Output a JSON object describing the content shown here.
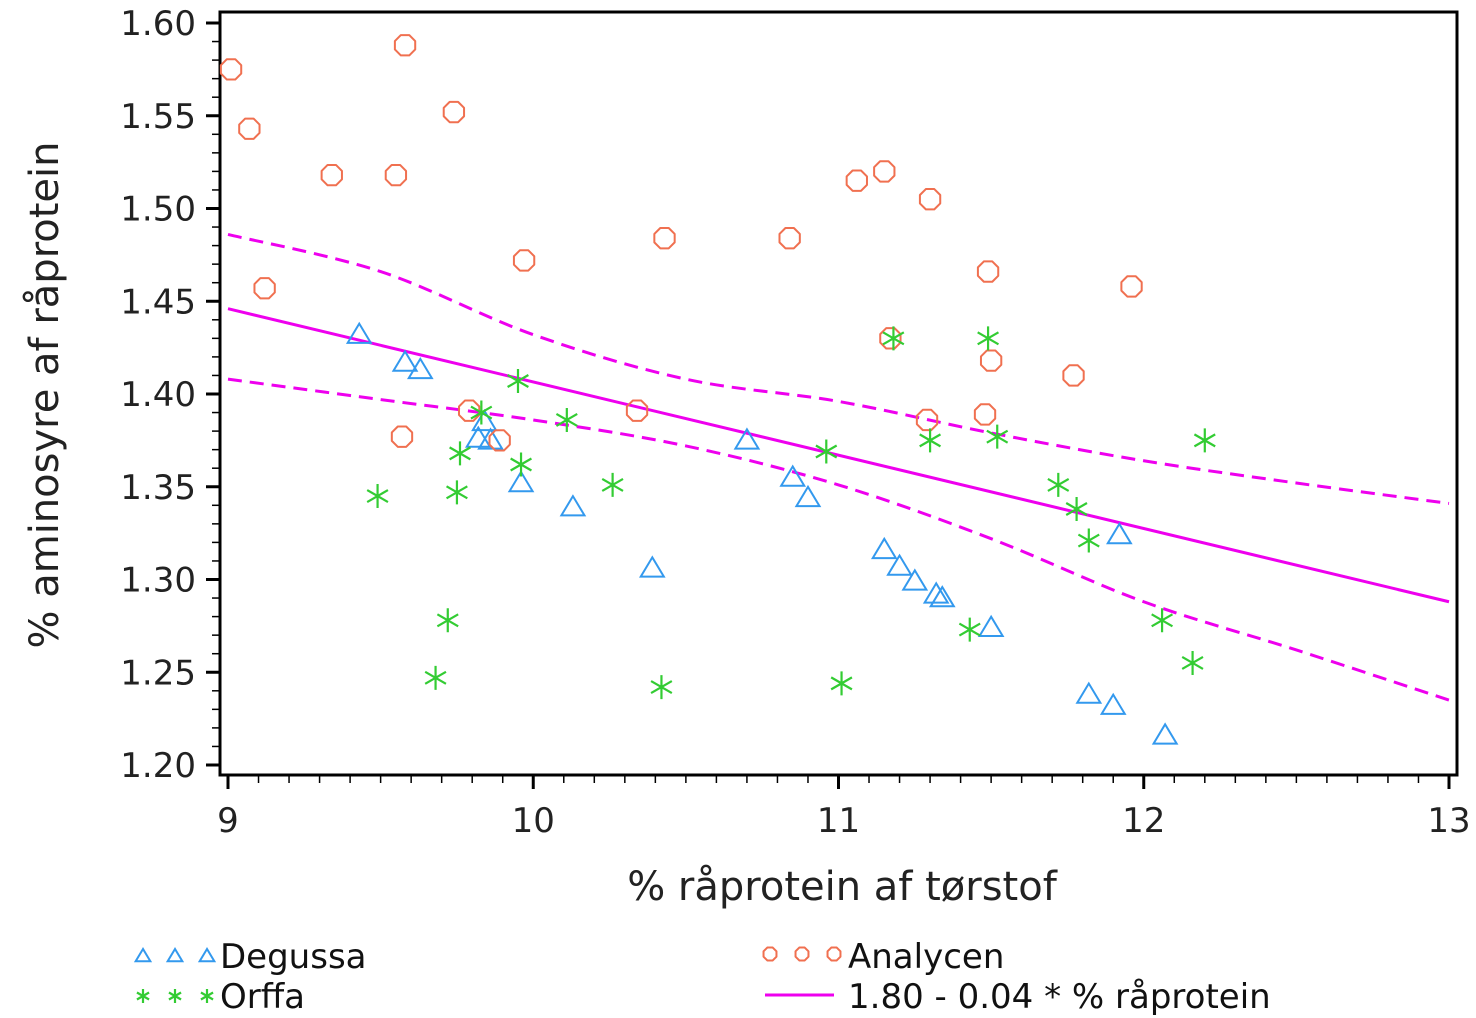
{
  "chart_data": {
    "type": "scatter",
    "title": "",
    "xlabel": "% råprotein af tørstof",
    "ylabel": "% aminosyre af råprotein",
    "xlim": [
      9,
      13
    ],
    "ylim": [
      1.2,
      1.6
    ],
    "x_ticks": [
      "9",
      "10",
      "11",
      "12",
      "13"
    ],
    "y_ticks": [
      "1.20",
      "1.25",
      "1.30",
      "1.35",
      "1.40",
      "1.45",
      "1.50",
      "1.55",
      "1.60"
    ],
    "grid": false,
    "legend_position": "bottom",
    "series": [
      {
        "name": "Degussa",
        "marker": "triangle",
        "color": "#3399ee",
        "points": [
          [
            9.43,
            1.432
          ],
          [
            9.58,
            1.417
          ],
          [
            9.63,
            1.413
          ],
          [
            9.82,
            1.376
          ],
          [
            9.84,
            1.385
          ],
          [
            9.86,
            1.375
          ],
          [
            9.96,
            1.352
          ],
          [
            10.13,
            1.339
          ],
          [
            10.39,
            1.306
          ],
          [
            10.7,
            1.375
          ],
          [
            10.85,
            1.355
          ],
          [
            10.9,
            1.344
          ],
          [
            11.15,
            1.316
          ],
          [
            11.2,
            1.307
          ],
          [
            11.25,
            1.299
          ],
          [
            11.32,
            1.292
          ],
          [
            11.34,
            1.29
          ],
          [
            11.5,
            1.274
          ],
          [
            11.82,
            1.238
          ],
          [
            11.9,
            1.232
          ],
          [
            11.92,
            1.324
          ],
          [
            12.07,
            1.216
          ]
        ]
      },
      {
        "name": "Analycen",
        "marker": "circle",
        "color": "#f07050",
        "points": [
          [
            9.01,
            1.575
          ],
          [
            9.07,
            1.543
          ],
          [
            9.12,
            1.457
          ],
          [
            9.34,
            1.518
          ],
          [
            9.55,
            1.518
          ],
          [
            9.58,
            1.588
          ],
          [
            9.57,
            1.377
          ],
          [
            9.74,
            1.552
          ],
          [
            9.79,
            1.391
          ],
          [
            9.89,
            1.375
          ],
          [
            9.97,
            1.472
          ],
          [
            10.34,
            1.391
          ],
          [
            10.43,
            1.484
          ],
          [
            10.84,
            1.484
          ],
          [
            11.06,
            1.515
          ],
          [
            11.15,
            1.52
          ],
          [
            11.17,
            1.43
          ],
          [
            11.3,
            1.505
          ],
          [
            11.29,
            1.386
          ],
          [
            11.48,
            1.389
          ],
          [
            11.49,
            1.466
          ],
          [
            11.5,
            1.418
          ],
          [
            11.77,
            1.41
          ],
          [
            11.96,
            1.458
          ]
        ]
      },
      {
        "name": "Orffa",
        "marker": "star",
        "color": "#33cc33",
        "points": [
          [
            9.49,
            1.345
          ],
          [
            9.68,
            1.247
          ],
          [
            9.72,
            1.278
          ],
          [
            9.75,
            1.347
          ],
          [
            9.76,
            1.368
          ],
          [
            9.83,
            1.39
          ],
          [
            9.95,
            1.407
          ],
          [
            9.96,
            1.362
          ],
          [
            10.11,
            1.386
          ],
          [
            10.26,
            1.351
          ],
          [
            10.42,
            1.242
          ],
          [
            10.96,
            1.369
          ],
          [
            11.01,
            1.244
          ],
          [
            11.18,
            1.43
          ],
          [
            11.3,
            1.375
          ],
          [
            11.43,
            1.273
          ],
          [
            11.49,
            1.43
          ],
          [
            11.52,
            1.377
          ],
          [
            11.72,
            1.351
          ],
          [
            11.78,
            1.338
          ],
          [
            11.82,
            1.321
          ],
          [
            12.06,
            1.278
          ],
          [
            12.16,
            1.255
          ],
          [
            12.2,
            1.375
          ]
        ]
      }
    ],
    "fit": {
      "name": "1.80 - 0.04 * % råprotein",
      "color": "#ee00ee",
      "intercept": 1.8,
      "slope": -0.04,
      "line": [
        [
          9,
          1.446
        ],
        [
          13,
          1.288
        ]
      ],
      "upper_band": [
        [
          9,
          1.486
        ],
        [
          9.5,
          1.466
        ],
        [
          10,
          1.432
        ],
        [
          10.5,
          1.408
        ],
        [
          11,
          1.396
        ],
        [
          11.5,
          1.379
        ],
        [
          12,
          1.364
        ],
        [
          12.5,
          1.352
        ],
        [
          13,
          1.341
        ]
      ],
      "lower_band": [
        [
          9,
          1.408
        ],
        [
          9.5,
          1.397
        ],
        [
          10,
          1.386
        ],
        [
          10.5,
          1.372
        ],
        [
          11,
          1.351
        ],
        [
          11.5,
          1.322
        ],
        [
          12,
          1.288
        ],
        [
          12.5,
          1.262
        ],
        [
          13,
          1.235
        ]
      ]
    }
  },
  "legend": {
    "degussa_label": "Degussa",
    "orffa_label": "Orffa",
    "analycen_label": "Analycen",
    "fit_label": "1.80 - 0.04 * % råprotein"
  }
}
